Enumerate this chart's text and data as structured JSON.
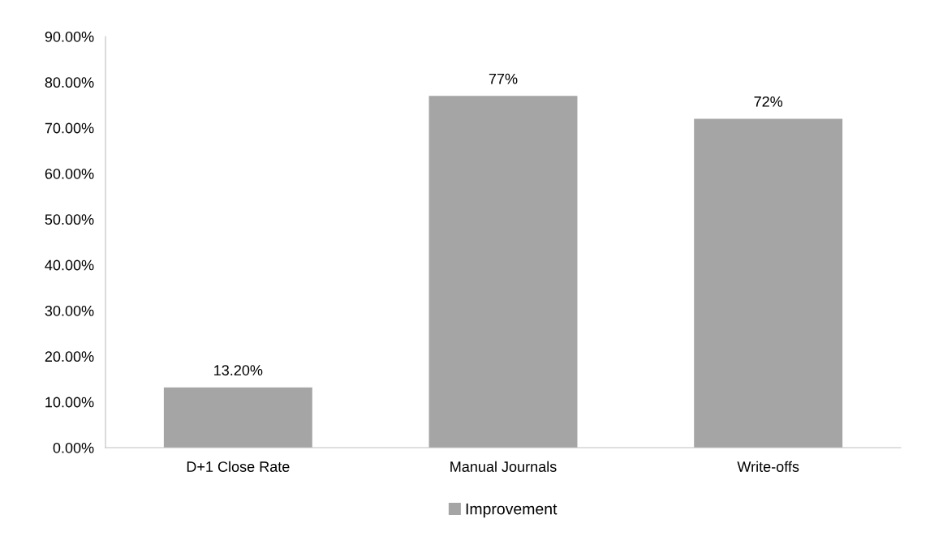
{
  "chart_data": {
    "type": "bar",
    "categories": [
      "D+1 Close Rate",
      "Manual Journals",
      "Write-offs"
    ],
    "series": [
      {
        "name": "Improvement",
        "color": "#a5a5a5",
        "values": [
          13.2,
          77,
          72
        ],
        "value_labels": [
          "13.20%",
          "77%",
          "72%"
        ]
      }
    ],
    "ylim": [
      0,
      90
    ],
    "yticks": [
      {
        "value": 0,
        "label": "0.00%"
      },
      {
        "value": 10,
        "label": "10.00%"
      },
      {
        "value": 20,
        "label": "20.00%"
      },
      {
        "value": 30,
        "label": "30.00%"
      },
      {
        "value": 40,
        "label": "40.00%"
      },
      {
        "value": 50,
        "label": "50.00%"
      },
      {
        "value": 60,
        "label": "60.00%"
      },
      {
        "value": 70,
        "label": "70.00%"
      },
      {
        "value": 80,
        "label": "80.00%"
      },
      {
        "value": 90,
        "label": "90.00%"
      }
    ],
    "grid": false,
    "legend": "bottom"
  }
}
